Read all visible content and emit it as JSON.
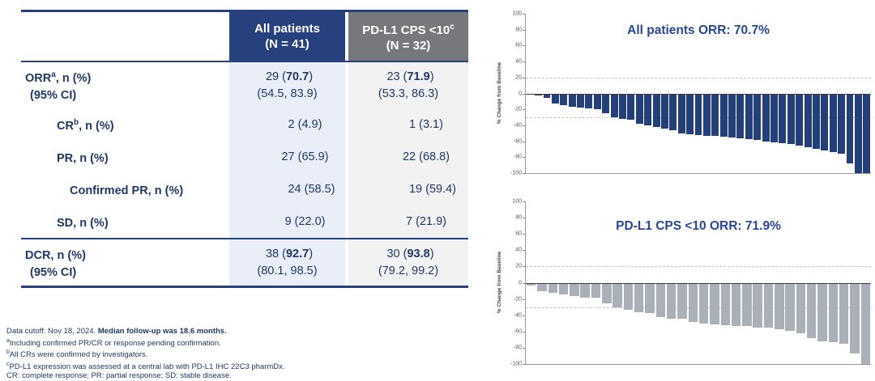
{
  "colors": {
    "header_blue": "#27407e",
    "header_gray": "#77787b",
    "body_col_blue": "#e9eef8",
    "body_col_gray": "#f2f2f3",
    "text_navy": "#1f3864",
    "chart_title_blue": "#2a4796",
    "bar_blue": "#24407a",
    "bar_gray": "#aab0b8"
  },
  "table": {
    "header": {
      "col2_line1": "All patients",
      "col2_line2": "(N = 41)",
      "col3_line1": "PD-L1 CPS <10",
      "col3_sup": "c",
      "col3_line2": "(N = 32)"
    },
    "rows": [
      {
        "text": "ORR",
        "sup": "a",
        "rest": ", n (%)",
        "sub": "(95% CI)",
        "indent": 0,
        "c2": {
          "pre": "29 (",
          "bold": "70.7",
          "post": ")"
        },
        "c2sub": "(54.5, 83.9)",
        "c3": {
          "pre": "23 (",
          "bold": "71.9",
          "post": ")"
        },
        "c3sub": "(53.3, 86.3)"
      },
      {
        "text": "CR",
        "sup": "b",
        "rest": ", n (%)",
        "indent": 1,
        "c2": {
          "pre": "2 (4.9)",
          "bold": "",
          "post": ""
        },
        "c3": {
          "pre": "1 (3.1)",
          "bold": "",
          "post": ""
        }
      },
      {
        "text": "PR",
        "sup": "",
        "rest": ", n (%)",
        "indent": 1,
        "c2": {
          "pre": "27 (65.9)",
          "bold": "",
          "post": ""
        },
        "c3": {
          "pre": "22 (68.8)",
          "bold": "",
          "post": ""
        }
      },
      {
        "text": "Confirmed PR",
        "sup": "",
        "rest": ", n (%)",
        "indent": 2,
        "c2": {
          "pre": "24 (58.5)",
          "bold": "",
          "post": ""
        },
        "c3": {
          "pre": "19 (59.4)",
          "bold": "",
          "post": ""
        }
      },
      {
        "text": "SD",
        "sup": "",
        "rest": ", n (%)",
        "indent": 1,
        "c2": {
          "pre": "9 (22.0)",
          "bold": "",
          "post": ""
        },
        "c3": {
          "pre": "7 (21.9)",
          "bold": "",
          "post": ""
        }
      },
      {
        "text": "DCR",
        "sup": "",
        "rest": ", n (%)",
        "sub": "(95% CI)",
        "indent": 0,
        "divider": true,
        "c2": {
          "pre": "38 (",
          "bold": "92.7",
          "post": ")"
        },
        "c2sub": "(80.1, 98.5)",
        "c3": {
          "pre": "30 (",
          "bold": "93.8",
          "post": ")"
        },
        "c3sub": "(79.2, 99.2)"
      }
    ]
  },
  "footnotes": [
    {
      "sup": "",
      "pre": "Data cutoff: Nov 18, 2024. ",
      "bold": "Median follow-up was 18.6 months."
    },
    {
      "sup": "a",
      "pre": "Including confirmed PR/CR or response pending confirmation.",
      "bold": ""
    },
    {
      "sup": "b",
      "pre": "All CRs were confirmed by investigators.",
      "bold": ""
    },
    {
      "sup": "c",
      "pre": "PD-L1 expression was assessed at a central lab with PD-L1 IHC 22C3 pharmDx.",
      "bold": ""
    },
    {
      "sup": "",
      "pre": "CR: complete response; PR: partial response; SD: stable disease.",
      "bold": ""
    }
  ],
  "chart_data": [
    {
      "type": "bar",
      "subtype": "waterfall",
      "title": "All patients ORR: 70.7%",
      "ylabel": "% Change from Baseline",
      "xlabel": "",
      "ylim": [
        -100,
        100
      ],
      "yticks": [
        100,
        80,
        60,
        40,
        20,
        0,
        -20,
        -40,
        -60,
        -80,
        -100
      ],
      "reference_lines": [
        20,
        -30
      ],
      "grid": "dashed-reference-only",
      "legend": "none",
      "bar_color": "#24407a",
      "values": [
        -2,
        -3,
        -6,
        -13,
        -15,
        -17,
        -18,
        -19,
        -20,
        -25,
        -30,
        -32,
        -33,
        -38,
        -40,
        -42,
        -44,
        -46,
        -50,
        -51,
        -52,
        -53,
        -53,
        -54,
        -55,
        -56,
        -57,
        -58,
        -60,
        -61,
        -62,
        -63,
        -65,
        -68,
        -70,
        -72,
        -74,
        -76,
        -88,
        -100,
        -100
      ]
    },
    {
      "type": "bar",
      "subtype": "waterfall",
      "title": "PD-L1 CPS <10 ORR: 71.9%",
      "ylabel": "% Change from Baseline",
      "xlabel": "",
      "ylim": [
        -100,
        100
      ],
      "yticks": [
        100,
        80,
        60,
        40,
        20,
        0,
        -20,
        -40,
        -60,
        -80,
        -100
      ],
      "reference_lines": [
        20,
        -30
      ],
      "grid": "dashed-reference-only",
      "legend": "none",
      "bar_color": "#aab0b8",
      "values": [
        -3,
        -10,
        -12,
        -14,
        -16,
        -18,
        -18,
        -25,
        -30,
        -33,
        -36,
        -37,
        -42,
        -44,
        -44,
        -48,
        -50,
        -51,
        -52,
        -53,
        -53,
        -55,
        -55,
        -57,
        -59,
        -62,
        -68,
        -72,
        -73,
        -75,
        -87,
        -100
      ]
    }
  ]
}
